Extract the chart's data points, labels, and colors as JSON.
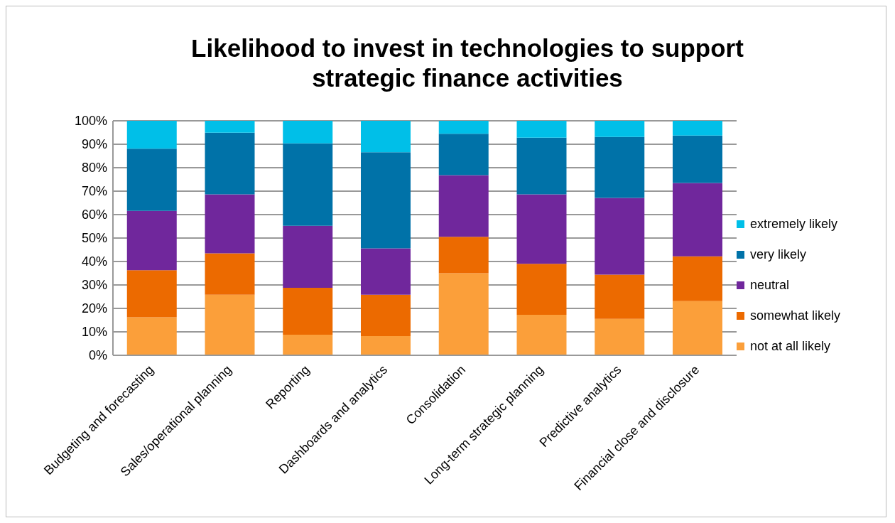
{
  "chart_data": {
    "type": "bar",
    "stacked": true,
    "title": "Likelihood to invest in technologies to support strategic finance activities",
    "categories": [
      "Budgeting and forecasting",
      "Sales/operational planning",
      "Reporting",
      "Dashboards and analytics",
      "Consolidation",
      "Long-term strategic planning",
      "Predictive analytics",
      "Financial close and disclosure"
    ],
    "series": [
      {
        "name": "not at all likely",
        "color": "#fb9f3a",
        "values": [
          16.2,
          25.8,
          8.8,
          8.2,
          35.0,
          17.3,
          15.5,
          23.1
        ]
      },
      {
        "name": "somewhat likely",
        "color": "#ec6a00",
        "values": [
          20.1,
          17.7,
          20.0,
          17.6,
          15.5,
          21.7,
          18.9,
          19.1
        ]
      },
      {
        "name": "neutral",
        "color": "#70279c",
        "values": [
          25.3,
          25.1,
          26.4,
          19.8,
          26.3,
          29.6,
          32.7,
          31.3
        ]
      },
      {
        "name": "very likely",
        "color": "#0072a8",
        "values": [
          26.5,
          26.3,
          35.2,
          41.0,
          17.7,
          24.2,
          26.0,
          20.2
        ]
      },
      {
        "name": "extremely likely",
        "color": "#00bfe8",
        "values": [
          11.9,
          5.1,
          9.6,
          13.4,
          5.5,
          7.2,
          6.9,
          6.3
        ]
      }
    ],
    "ylim": [
      0,
      100
    ],
    "yticks": [
      {
        "value": 0,
        "label": "0%"
      },
      {
        "value": 10,
        "label": "10%"
      },
      {
        "value": 20,
        "label": "20%"
      },
      {
        "value": 30,
        "label": "30%"
      },
      {
        "value": 40,
        "label": "40%"
      },
      {
        "value": 50,
        "label": "50%"
      },
      {
        "value": 60,
        "label": "60%"
      },
      {
        "value": 70,
        "label": "70%"
      },
      {
        "value": 80,
        "label": "80%"
      },
      {
        "value": 90,
        "label": "90%"
      },
      {
        "value": 100,
        "label": "100%"
      }
    ],
    "grid": "y",
    "legend": "right"
  }
}
